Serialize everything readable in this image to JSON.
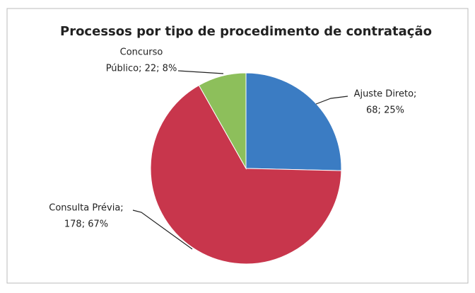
{
  "chart_data": {
    "type": "pie",
    "title": "Processos por tipo de procedimento de contratação",
    "values": [
      68,
      178,
      22
    ],
    "value_labels": [
      [
        "Ajuste Direto;",
        "68; 25%"
      ],
      [
        "Consulta Prévia;",
        "178; 67%"
      ],
      [
        "Concurso",
        "Público; 22; 8%"
      ]
    ],
    "colors": [
      "#3b7cc3",
      "#c8364c",
      "#8dbf5b"
    ]
  }
}
